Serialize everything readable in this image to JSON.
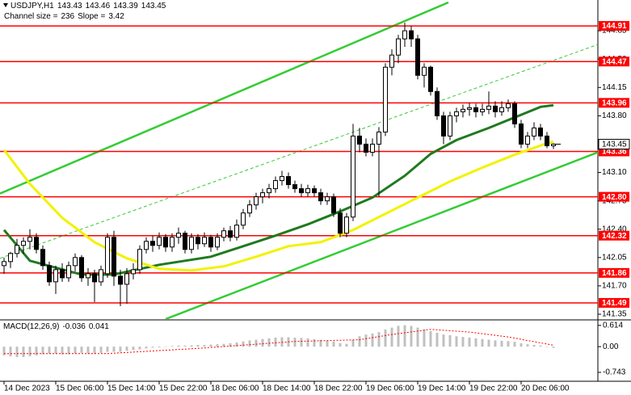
{
  "chart_data": {
    "type": "candlestick",
    "title": "USDJPY,H1",
    "channel": {
      "size_label": "Channel size =",
      "size": 236,
      "slope_label": "Slope =",
      "slope": 3.42
    },
    "xlim": [
      -0.625,
      91.875
    ],
    "ylim": [
      141.29,
      145.23
    ],
    "xticks": [
      {
        "value": 0,
        "label": "14 Dec 2023"
      },
      {
        "value": 8,
        "label": "15 Dec 06:00"
      },
      {
        "value": 16,
        "label": "15 Dec 14:00"
      },
      {
        "value": 24,
        "label": "15 Dec 22:00"
      },
      {
        "value": 32,
        "label": "18 Dec 06:00"
      },
      {
        "value": 40,
        "label": "18 Dec 14:00"
      },
      {
        "value": 48,
        "label": "18 Dec 22:00"
      },
      {
        "value": 56,
        "label": "19 Dec 06:00"
      },
      {
        "value": 64,
        "label": "19 Dec 14:00"
      },
      {
        "value": 72,
        "label": "19 Dec 22:00"
      },
      {
        "value": 80,
        "label": "20 Dec 06:00"
      }
    ],
    "yticks": [
      144.85,
      {
        "value": 144.5,
        "label": "144.50"
      },
      144.15,
      {
        "value": 143.8,
        "label": "143.80"
      },
      {
        "value": 143.1,
        "label": "143.10"
      },
      142.75,
      {
        "value": 142.4,
        "label": "142.40"
      },
      142.05,
      {
        "value": 141.7,
        "label": "141.70"
      },
      141.35
    ],
    "ohlc": [
      [
        141.95,
        142.05,
        141.85,
        142.0
      ],
      [
        142.0,
        142.12,
        141.92,
        142.1
      ],
      [
        142.1,
        142.28,
        142.05,
        142.2
      ],
      [
        142.2,
        142.3,
        142.1,
        142.25
      ],
      [
        142.25,
        142.4,
        142.15,
        142.3
      ],
      [
        142.3,
        142.35,
        142.1,
        142.15
      ],
      [
        142.15,
        142.2,
        141.9,
        141.95
      ],
      [
        141.95,
        142.0,
        141.7,
        141.75
      ],
      [
        141.75,
        141.95,
        141.6,
        141.9
      ],
      [
        141.9,
        141.98,
        141.75,
        141.8
      ],
      [
        141.8,
        142.0,
        141.75,
        141.95
      ],
      [
        141.95,
        142.1,
        141.88,
        142.05
      ],
      [
        142.05,
        142.08,
        141.75,
        141.8
      ],
      [
        141.8,
        141.92,
        141.7,
        141.85
      ],
      [
        141.85,
        141.9,
        141.5,
        141.75
      ],
      [
        141.75,
        141.95,
        141.7,
        141.9
      ],
      [
        141.85,
        142.35,
        141.8,
        142.3
      ],
      [
        142.3,
        142.38,
        141.7,
        141.82
      ],
      [
        141.82,
        141.9,
        141.45,
        141.72
      ],
      [
        141.72,
        141.92,
        141.48,
        141.85
      ],
      [
        141.85,
        141.98,
        141.78,
        141.9
      ],
      [
        141.9,
        142.2,
        141.85,
        142.15
      ],
      [
        142.15,
        142.3,
        142.1,
        142.25
      ],
      [
        142.25,
        142.32,
        142.12,
        142.2
      ],
      [
        142.2,
        142.36,
        142.15,
        142.3
      ],
      [
        142.3,
        142.34,
        142.12,
        142.18
      ],
      [
        142.18,
        142.35,
        142.12,
        142.3
      ],
      [
        142.3,
        142.42,
        142.22,
        142.35
      ],
      [
        142.35,
        142.38,
        142.1,
        142.15
      ],
      [
        142.15,
        142.35,
        142.1,
        142.3
      ],
      [
        142.3,
        142.34,
        142.15,
        142.22
      ],
      [
        142.22,
        142.36,
        142.18,
        142.3
      ],
      [
        142.3,
        142.33,
        142.12,
        142.18
      ],
      [
        142.18,
        142.35,
        142.14,
        142.3
      ],
      [
        142.3,
        142.42,
        142.25,
        142.38
      ],
      [
        142.38,
        142.44,
        142.25,
        142.3
      ],
      [
        142.3,
        142.52,
        142.26,
        142.45
      ],
      [
        142.45,
        142.65,
        142.4,
        142.6
      ],
      [
        142.6,
        142.76,
        142.55,
        142.7
      ],
      [
        142.7,
        142.85,
        142.64,
        142.8
      ],
      [
        142.8,
        142.9,
        142.72,
        142.85
      ],
      [
        142.85,
        142.96,
        142.78,
        142.9
      ],
      [
        142.9,
        143.05,
        142.85,
        143.0
      ],
      [
        143.0,
        143.12,
        142.94,
        143.05
      ],
      [
        143.05,
        143.1,
        142.9,
        142.95
      ],
      [
        142.95,
        143.0,
        142.85,
        142.9
      ],
      [
        142.9,
        142.96,
        142.8,
        142.85
      ],
      [
        142.85,
        142.95,
        142.8,
        142.9
      ],
      [
        142.9,
        142.94,
        142.8,
        142.85
      ],
      [
        142.85,
        142.9,
        142.7,
        142.75
      ],
      [
        142.75,
        142.85,
        142.7,
        142.8
      ],
      [
        142.8,
        142.84,
        142.55,
        142.6
      ],
      [
        142.6,
        142.66,
        142.3,
        142.35
      ],
      [
        142.35,
        142.6,
        142.3,
        142.55
      ],
      [
        142.55,
        143.7,
        142.5,
        143.55
      ],
      [
        143.55,
        143.65,
        143.35,
        143.45
      ],
      [
        143.45,
        143.52,
        143.3,
        143.35
      ],
      [
        143.35,
        143.52,
        143.3,
        143.45
      ],
      [
        143.45,
        143.66,
        142.8,
        143.6
      ],
      [
        143.6,
        144.45,
        143.55,
        144.4
      ],
      [
        144.4,
        144.62,
        144.3,
        144.55
      ],
      [
        144.55,
        144.8,
        144.45,
        144.75
      ],
      [
        144.75,
        144.95,
        144.65,
        144.85
      ],
      [
        144.85,
        144.91,
        144.65,
        144.75
      ],
      [
        144.75,
        144.8,
        144.25,
        144.3
      ],
      [
        144.3,
        144.45,
        144.15,
        144.4
      ],
      [
        144.4,
        144.42,
        144.05,
        144.1
      ],
      [
        144.1,
        144.15,
        143.75,
        143.8
      ],
      [
        143.8,
        143.85,
        143.45,
        143.55
      ],
      [
        143.55,
        143.85,
        143.5,
        143.8
      ],
      [
        143.8,
        143.9,
        143.72,
        143.85
      ],
      [
        143.85,
        143.94,
        143.78,
        143.88
      ],
      [
        143.88,
        143.96,
        143.8,
        143.9
      ],
      [
        143.9,
        143.95,
        143.78,
        143.85
      ],
      [
        143.85,
        143.95,
        143.8,
        143.88
      ],
      [
        143.88,
        144.1,
        143.82,
        143.92
      ],
      [
        143.92,
        143.98,
        143.78,
        143.85
      ],
      [
        143.85,
        143.98,
        143.8,
        143.9
      ],
      [
        143.9,
        144.0,
        143.85,
        143.95
      ],
      [
        143.95,
        143.98,
        143.65,
        143.7
      ],
      [
        143.7,
        143.75,
        143.4,
        143.45
      ],
      [
        143.45,
        143.6,
        143.4,
        143.55
      ],
      [
        143.55,
        143.72,
        143.5,
        143.65
      ],
      [
        143.65,
        143.7,
        143.5,
        143.55
      ],
      [
        143.55,
        143.6,
        143.4,
        143.43
      ],
      [
        143.43,
        143.46,
        143.39,
        143.45
      ]
    ],
    "bull_color": "#ffffff",
    "bear_color": "#000000",
    "moving_averages": [
      {
        "color": "#1f7a1f",
        "x": [
          0,
          4,
          12,
          17,
          24,
          32,
          37,
          42,
          47,
          52,
          57,
          62,
          66,
          70,
          75,
          79,
          83,
          85
        ],
        "values": [
          142.39,
          142.01,
          141.84,
          141.84,
          141.96,
          142.06,
          142.19,
          142.32,
          142.46,
          142.62,
          142.79,
          143.06,
          143.33,
          143.5,
          143.65,
          143.78,
          143.91,
          143.93
        ]
      },
      {
        "color": "#f2f200",
        "x": [
          0,
          4,
          9,
          14,
          19,
          24,
          29,
          34,
          39,
          44,
          49,
          54,
          59,
          64,
          69,
          74,
          79,
          84,
          85
        ],
        "values": [
          143.38,
          142.96,
          142.54,
          142.24,
          142.04,
          141.91,
          141.89,
          141.94,
          142.06,
          142.19,
          142.24,
          142.39,
          142.59,
          142.79,
          142.99,
          143.16,
          143.32,
          143.46,
          143.48
        ]
      }
    ],
    "trendlines": [
      {
        "color": "#33cc33",
        "dashed": false,
        "x": [
          -0.625,
          68.75
        ],
        "values": [
          142.84,
          145.2
        ]
      },
      {
        "color": "#33cc33",
        "dashed": false,
        "x": [
          25,
          91.875
        ],
        "values": [
          141.29,
          143.35
        ]
      },
      {
        "color": "#33cc33",
        "dashed": true,
        "x": [
          -0.625,
          91.875
        ],
        "values": [
          142.04,
          144.68
        ]
      }
    ],
    "level_color": "#ff0000",
    "levels": [
      144.91,
      144.47,
      143.96,
      143.36,
      {
        "value": 142.8,
        "label": "142.80"
      },
      142.32,
      141.86,
      141.49
    ],
    "current_price": 143.45,
    "macd": {
      "title": "MACD(12,26,9)",
      "ylim": [
        -1.0,
        0.75
      ],
      "yticks": [
        0.614,
        {
          "value": 0,
          "label": "0.00"
        },
        -0.743
      ],
      "histogram_color": "#c0c0c0",
      "histogram": [
        -0.25,
        -0.28,
        -0.3,
        -0.3,
        -0.28,
        -0.25,
        -0.22,
        -0.2,
        -0.2,
        -0.22,
        -0.22,
        -0.2,
        -0.18,
        -0.2,
        -0.2,
        -0.18,
        -0.15,
        -0.15,
        -0.15,
        -0.12,
        -0.1,
        -0.08,
        -0.05,
        -0.03,
        -0.02,
        0.0,
        0.02,
        0.03,
        0.03,
        0.04,
        0.05,
        0.05,
        0.06,
        0.07,
        0.08,
        0.1,
        0.12,
        0.15,
        0.18,
        0.2,
        0.22,
        0.24,
        0.26,
        0.27,
        0.27,
        0.26,
        0.25,
        0.24,
        0.22,
        0.2,
        0.18,
        0.15,
        0.1,
        0.08,
        0.2,
        0.3,
        0.35,
        0.38,
        0.42,
        0.5,
        0.55,
        0.6,
        0.62,
        0.6,
        0.55,
        0.5,
        0.45,
        0.4,
        0.35,
        0.33,
        0.3,
        0.28,
        0.26,
        0.24,
        0.22,
        0.2,
        0.18,
        0.17,
        0.16,
        0.14,
        0.1,
        0.07,
        0.05,
        0.03,
        0.0,
        -0.036
      ],
      "signal_color": "#ff0000",
      "signal_x": [
        0,
        16,
        30,
        45,
        55,
        60,
        66,
        72,
        78,
        85
      ],
      "signal": [
        -0.2,
        -0.2,
        -0.05,
        0.15,
        0.2,
        0.35,
        0.5,
        0.42,
        0.28,
        0.041
      ]
    }
  }
}
